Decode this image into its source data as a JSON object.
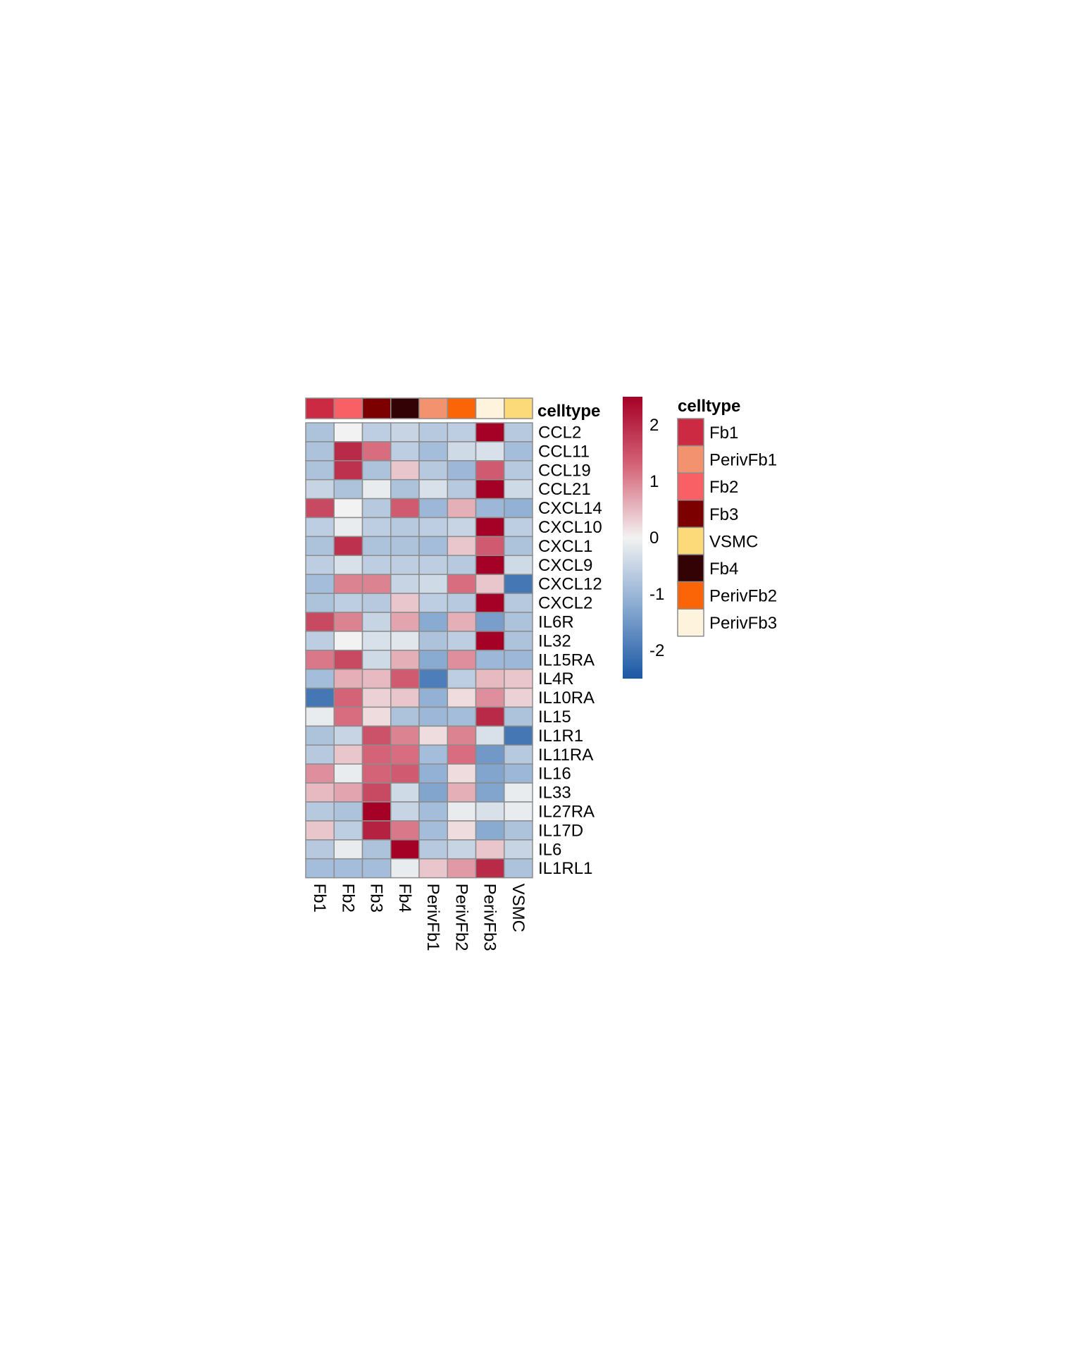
{
  "chart_data": {
    "type": "heatmap",
    "title": "",
    "x_categories": [
      "Fb1",
      "Fb2",
      "Fb3",
      "Fb4",
      "PerivFb1",
      "PerivFb2",
      "PerivFb3",
      "VSMC"
    ],
    "y_categories": [
      "CCL2",
      "CCL11",
      "CCL19",
      "CCL21",
      "CXCL14",
      "CXCL10",
      "CXCL1",
      "CXCL9",
      "CXCL12",
      "CXCL2",
      "IL6R",
      "IL32",
      "IL15RA",
      "IL4R",
      "IL10RA",
      "IL15",
      "IL1R1",
      "IL11RA",
      "IL16",
      "IL33",
      "IL27RA",
      "IL17D",
      "IL6",
      "IL1RL1"
    ],
    "values": [
      [
        -0.8,
        0.0,
        -0.6,
        -0.5,
        -0.7,
        -0.6,
        2.5,
        -0.7
      ],
      [
        -0.8,
        2.0,
        1.2,
        -0.6,
        -0.9,
        -0.4,
        -0.3,
        -0.9
      ],
      [
        -0.8,
        1.9,
        -0.8,
        0.4,
        -0.7,
        -1.0,
        1.4,
        -0.7
      ],
      [
        -0.5,
        -0.8,
        -0.1,
        -0.8,
        -0.3,
        -0.7,
        2.5,
        -0.4
      ],
      [
        1.6,
        0.0,
        -0.7,
        1.4,
        -1.0,
        0.6,
        -1.0,
        -1.1
      ],
      [
        -0.6,
        -0.1,
        -0.6,
        -0.7,
        -0.6,
        -0.5,
        2.5,
        -0.6
      ],
      [
        -0.8,
        1.9,
        -0.8,
        -0.8,
        -0.9,
        0.4,
        1.4,
        -0.8
      ],
      [
        -0.6,
        -0.3,
        -0.6,
        -0.6,
        -0.6,
        -0.7,
        2.5,
        -0.4
      ],
      [
        -0.9,
        1.0,
        1.0,
        -0.5,
        -0.4,
        1.2,
        0.4,
        -2.0
      ],
      [
        -0.8,
        -0.6,
        -0.7,
        0.4,
        -0.6,
        -0.7,
        2.5,
        -0.7
      ],
      [
        1.6,
        1.0,
        -0.5,
        0.7,
        -1.2,
        0.6,
        -1.4,
        -0.8
      ],
      [
        -0.6,
        0.0,
        -0.3,
        -0.2,
        -0.8,
        -0.6,
        2.5,
        -0.8
      ],
      [
        1.1,
        1.6,
        -0.4,
        0.6,
        -1.2,
        0.9,
        -1.0,
        -1.0
      ],
      [
        -0.9,
        0.6,
        0.5,
        1.4,
        -1.9,
        -0.6,
        0.5,
        0.4
      ],
      [
        -2.0,
        1.3,
        0.3,
        0.4,
        -1.1,
        0.2,
        0.9,
        0.3
      ],
      [
        -0.1,
        1.2,
        0.2,
        -0.8,
        -1.0,
        -0.9,
        2.0,
        -0.8
      ],
      [
        -0.8,
        -0.5,
        1.5,
        1.0,
        0.2,
        1.0,
        -0.3,
        -2.0
      ],
      [
        -0.7,
        0.4,
        1.3,
        1.2,
        -0.9,
        1.2,
        -1.5,
        -0.7
      ],
      [
        0.9,
        -0.1,
        1.3,
        1.4,
        -1.1,
        0.2,
        -1.3,
        -1.0
      ],
      [
        0.5,
        0.7,
        1.6,
        -0.4,
        -1.3,
        0.6,
        -1.3,
        -0.1
      ],
      [
        -0.7,
        -0.8,
        2.5,
        -0.5,
        -0.9,
        -0.1,
        -0.3,
        -0.1
      ],
      [
        0.4,
        -0.6,
        2.1,
        1.1,
        -0.9,
        0.2,
        -1.2,
        -0.8
      ],
      [
        -0.7,
        -0.1,
        -0.8,
        2.5,
        -0.7,
        -0.5,
        0.4,
        -0.5
      ],
      [
        -0.9,
        -0.9,
        -0.9,
        -0.1,
        0.4,
        0.8,
        2.0,
        -0.8
      ]
    ],
    "color_scale": {
      "min": -2.5,
      "max": 2.5,
      "ticks": [
        2,
        1,
        0,
        -1,
        -2
      ],
      "low_color": "#2166AC",
      "mid_color": "#F2F2F2",
      "high_color": "#A50026"
    },
    "annotation": {
      "title": "celltype",
      "row_label": "celltype",
      "column_colors": [
        "#CB2A42",
        "#F96066",
        "#7C0000",
        "#320205",
        "#F2926F",
        "#FC6408",
        "#FEF3DD",
        "#FDDA79"
      ],
      "legend": [
        {
          "label": "Fb1",
          "color": "#CB2A42"
        },
        {
          "label": "PerivFb1",
          "color": "#F2926F"
        },
        {
          "label": "Fb2",
          "color": "#F96066"
        },
        {
          "label": "Fb3",
          "color": "#7C0000"
        },
        {
          "label": "VSMC",
          "color": "#FDDA79"
        },
        {
          "label": "Fb4",
          "color": "#320205"
        },
        {
          "label": "PerivFb2",
          "color": "#FC6408"
        },
        {
          "label": "PerivFb3",
          "color": "#FEF3DD"
        }
      ]
    },
    "grid": true,
    "legend_position": "right"
  }
}
